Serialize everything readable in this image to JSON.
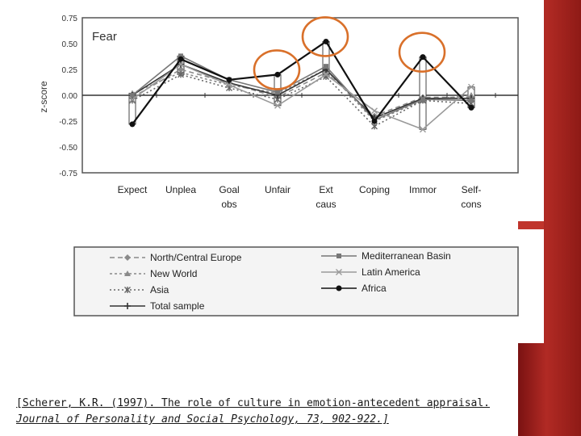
{
  "slide": {
    "accent_color": "#b12a24",
    "citation_line1": "[Scherer, K.R. (1997). The role of culture in emotion-antecedent appraisal.",
    "citation_line2": "Journal of Personality and Social Psychology, 73, 902-922.]"
  },
  "chart_data": {
    "type": "line",
    "title": "Fear",
    "xlabel": "",
    "ylabel": "z-score",
    "ylim": [
      -0.75,
      0.75
    ],
    "yticks": [
      "0.75",
      "0.50",
      "0.25",
      "0.00",
      "-0.25",
      "-0.50",
      "-0.75"
    ],
    "categories": [
      {
        "line1": "Expect",
        "line2": ""
      },
      {
        "line1": "Unplea",
        "line2": ""
      },
      {
        "line1": "Goal",
        "line2": "obs"
      },
      {
        "line1": "Unfair",
        "line2": ""
      },
      {
        "line1": "Ext",
        "line2": "caus"
      },
      {
        "line1": "Coping",
        "line2": ""
      },
      {
        "line1": "Immor",
        "line2": ""
      },
      {
        "line1": "Self-",
        "line2": "cons"
      }
    ],
    "grid": false,
    "legend_placement": "bottom",
    "series": [
      {
        "name": "North/Central Europe",
        "values": [
          -0.02,
          0.25,
          0.12,
          -0.02,
          0.22,
          -0.2,
          -0.02,
          -0.02
        ],
        "color": "#8a8a8a",
        "dash": "6,4",
        "marker": "diamond"
      },
      {
        "name": "New World",
        "values": [
          0.02,
          0.22,
          0.1,
          0.02,
          0.25,
          -0.25,
          -0.05,
          0.0
        ],
        "color": "#8a8a8a",
        "dash": "3,3",
        "marker": "triangle"
      },
      {
        "name": "Asia",
        "values": [
          -0.05,
          0.2,
          0.07,
          -0.04,
          0.18,
          -0.3,
          -0.05,
          -0.08
        ],
        "color": "#666666",
        "dash": "2,3",
        "marker": "star"
      },
      {
        "name": "Total sample",
        "values": [
          0.0,
          0.3,
          0.12,
          0.0,
          0.25,
          -0.22,
          -0.03,
          -0.03
        ],
        "color": "#333333",
        "dash": "",
        "marker": "plus"
      },
      {
        "name": "Mediterranean Basin",
        "values": [
          0.0,
          0.38,
          0.15,
          0.03,
          0.28,
          -0.24,
          -0.04,
          -0.05
        ],
        "color": "#777777",
        "dash": "",
        "marker": "square"
      },
      {
        "name": "Latin America",
        "values": [
          -0.04,
          0.3,
          0.1,
          -0.1,
          0.2,
          -0.15,
          -0.33,
          0.08
        ],
        "color": "#9a9a9a",
        "dash": "",
        "marker": "x"
      },
      {
        "name": "Africa",
        "values": [
          -0.28,
          0.35,
          0.15,
          0.2,
          0.52,
          -0.25,
          0.37,
          -0.12
        ],
        "color": "#111111",
        "dash": "",
        "marker": "dot"
      }
    ],
    "highlighted_categories": [
      "Unfair",
      "Ext",
      "Immor"
    ],
    "highlight_color": "#d9702a"
  }
}
